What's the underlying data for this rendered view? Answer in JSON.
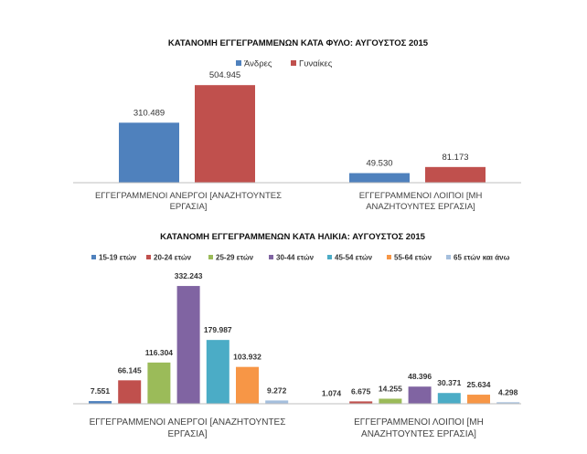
{
  "chart_data": [
    {
      "type": "bar",
      "title": "ΚΑΤΑΝΟΜΗ ΕΓΓΕΓΡΑΜΜΕΝΩΝ ΚΑΤΑ ΦΥΛΟ: ΑΥΓΟΥΣΤΟΣ 2015",
      "categories": [
        [
          "ΕΓΓΕΓΡΑΜΜΕΝΟΙ ΑΝΕΡΓΟΙ [ΑΝΑΖΗΤΟΥΝΤΕΣ",
          "ΕΡΓΑΣΙΑ]"
        ],
        [
          "ΕΓΓΕΓΡΑΜΜΕΝΟΙ ΛΟΙΠΟΙ [ΜΗ",
          "ΑΝΑΖΗΤΟΥΝΤΕΣ ΕΡΓΑΣΙΑ]"
        ]
      ],
      "series": [
        {
          "name": "Άνδρες",
          "color": "#4f81bd",
          "values": [
            310489,
            49530
          ],
          "labels": [
            "310.489",
            "49.530"
          ]
        },
        {
          "name": "Γυναίκες",
          "color": "#c0504d",
          "values": [
            504945,
            81173
          ],
          "labels": [
            "504.945",
            "81.173"
          ]
        }
      ],
      "ylim": [
        0,
        520000
      ],
      "legend": "top",
      "grid": false
    },
    {
      "type": "bar",
      "title": "ΚΑΤΑΝΟΜΗ ΕΓΓΕΓΡΑΜΜΕΝΩΝ ΚΑΤΑ ΗΛΙΚΙΑ: ΑΥΓΟΥΣΤΟΣ 2015",
      "categories": [
        [
          "ΕΓΓΕΓΡΑΜΜΕΝΟΙ ΑΝΕΡΓΟΙ [ΑΝΑΖΗΤΟΥΝΤΕΣ",
          "ΕΡΓΑΣΙΑ]"
        ],
        [
          "ΕΓΓΕΓΡΑΜΜΕΝΟΙ ΛΟΙΠΟΙ [ΜΗ",
          "ΑΝΑΖΗΤΟΥΝΤΕΣ ΕΡΓΑΣΙΑ]"
        ]
      ],
      "series": [
        {
          "name": "15-19 ετών",
          "color": "#4f81bd",
          "values": [
            7551,
            1074
          ],
          "labels": [
            "7.551",
            "1.074"
          ]
        },
        {
          "name": "20-24 ετών",
          "color": "#c0504d",
          "values": [
            66145,
            6675
          ],
          "labels": [
            "66.145",
            "6.675"
          ]
        },
        {
          "name": "25-29 ετών",
          "color": "#9bbb59",
          "values": [
            116304,
            14255
          ],
          "labels": [
            "116.304",
            "14.255"
          ]
        },
        {
          "name": "30-44 ετών",
          "color": "#8064a2",
          "values": [
            332243,
            48396
          ],
          "labels": [
            "332.243",
            "48.396"
          ]
        },
        {
          "name": "45-54 ετών",
          "color": "#4bacc6",
          "values": [
            179987,
            30371
          ],
          "labels": [
            "179.987",
            "30.371"
          ]
        },
        {
          "name": "55-64 ετών",
          "color": "#f79646",
          "values": [
            103932,
            25634
          ],
          "labels": [
            "103.932",
            "25.634"
          ]
        },
        {
          "name": "65 ετών και άνω",
          "color": "#a5bfdd",
          "values": [
            9272,
            4298
          ],
          "labels": [
            "9.272",
            "4.298"
          ]
        }
      ],
      "ylim": [
        0,
        335000
      ],
      "legend": "top",
      "grid": false
    }
  ]
}
